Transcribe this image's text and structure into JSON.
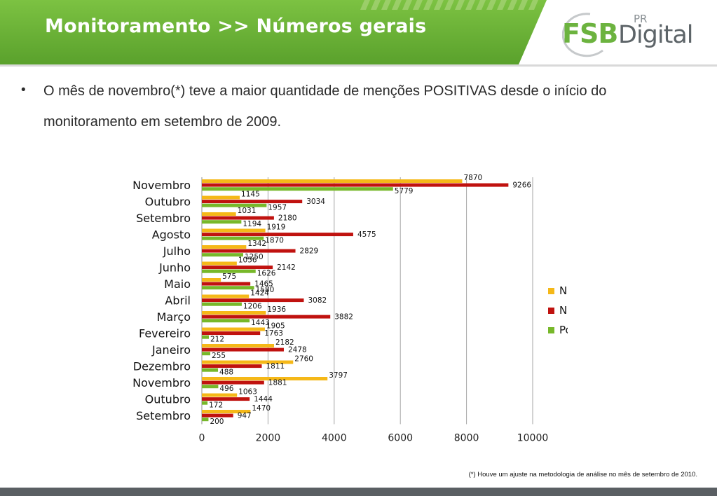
{
  "header": {
    "title": "Monitoramento >> Números gerais",
    "logo_main": "FSB",
    "logo_sub": "Digital",
    "logo_pr": "PR",
    "accent_color": "#6cb33f"
  },
  "bullet": {
    "text": "O mês de novembro(*) teve a maior quantidade de menções POSITIVAS desde o início do monitoramento em setembro de 2009."
  },
  "footnote": "(*) Houve um ajuste na metodologia de análise no mês de setembro de 2010.",
  "chart_data": {
    "type": "bar",
    "orientation": "horizontal",
    "categories": [
      "Novembro",
      "Outubro",
      "Setembro",
      "Agosto",
      "Julho",
      "Junho",
      "Maio",
      "Abril",
      "Março",
      "Fevereiro",
      "Janeiro",
      "Dezembro",
      "Novembro",
      "Outubro",
      "Setembro"
    ],
    "series": [
      {
        "name": "Neutro",
        "color": "#f5b818",
        "values": [
          7870,
          1145,
          1031,
          1919,
          1342,
          1056,
          575,
          1424,
          1936,
          1905,
          2182,
          2760,
          3797,
          1063,
          1470
        ]
      },
      {
        "name": "Negativo",
        "color": "#c0120f",
        "values": [
          9266,
          3034,
          2180,
          4575,
          2829,
          2142,
          1465,
          3082,
          3882,
          1763,
          2478,
          1811,
          1881,
          1444,
          947
        ]
      },
      {
        "name": "Positivo",
        "color": "#77b82a",
        "values": [
          5779,
          1957,
          1194,
          1870,
          1250,
          1626,
          1580,
          1206,
          1443,
          212,
          255,
          488,
          496,
          172,
          200
        ]
      }
    ],
    "xlim": [
      0,
      10000
    ],
    "xticks": [
      0,
      2000,
      4000,
      6000,
      8000,
      10000
    ],
    "grid": true,
    "legend": "right"
  }
}
